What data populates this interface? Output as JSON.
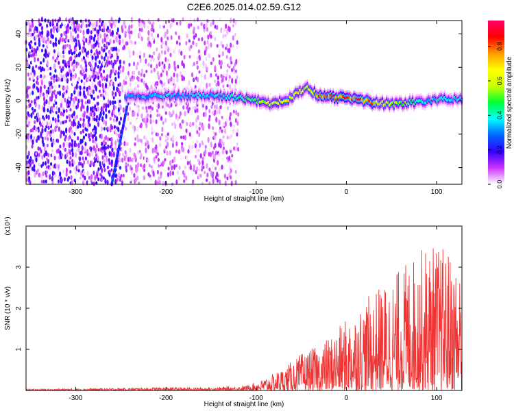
{
  "title": "C2E6.2025.014.02.59.G12",
  "chart_data": [
    {
      "type": "heatmap",
      "xlabel": "Height of straight line (km)",
      "ylabel": "Frequency (Hz)",
      "xlim": [
        -355,
        128
      ],
      "ylim": [
        -50,
        48
      ],
      "x_ticks": [
        -300,
        -200,
        -100,
        0,
        100
      ],
      "y_ticks": [
        -40,
        -20,
        0,
        20,
        40
      ],
      "colorbar": {
        "label": "Normalized spectral amplitude",
        "range": [
          0,
          0.95
        ],
        "ticks": [
          0.0,
          0.2,
          0.4,
          0.6,
          0.8
        ],
        "tick_labels": [
          "0.0",
          "0.2",
          "0.4",
          "0.6",
          "0.8"
        ],
        "colormap": [
          "#ffffff",
          "#cc33ff",
          "#3300ff",
          "#0066ff",
          "#00ffff",
          "#00ff33",
          "#ccff00",
          "#ffff00",
          "#ff9900",
          "#ff0000",
          "#ff0066"
        ]
      },
      "noise_region_x": [
        -355,
        -120
      ],
      "streak": {
        "x_start": -240,
        "x_end": -260,
        "y_start": 5,
        "y_end": -50,
        "amplitude": 0.25
      },
      "ridge": {
        "x": [
          -245,
          -200,
          -150,
          -120,
          -100,
          -80,
          -60,
          -45,
          -30,
          -10,
          10,
          30,
          50,
          70,
          90,
          110,
          128
        ],
        "y": [
          2,
          3,
          3,
          2,
          0,
          -2,
          2,
          8,
          3,
          2,
          1,
          -1,
          -2,
          -1,
          0,
          1,
          1
        ],
        "amplitude": [
          0.3,
          0.35,
          0.35,
          0.4,
          0.5,
          0.6,
          0.65,
          0.55,
          0.8,
          0.85,
          0.85,
          0.75,
          0.6,
          0.45,
          0.35,
          0.4,
          0.35
        ]
      },
      "grid": false
    },
    {
      "type": "line",
      "xlabel": "Height of straight line (km)",
      "ylabel": "SNR (10 * v/v)",
      "scale_label": "(x10⁴)",
      "xlim": [
        -355,
        128
      ],
      "ylim": [
        0,
        4.0
      ],
      "x_ticks": [
        -300,
        -200,
        -100,
        0,
        100
      ],
      "y_ticks": [
        1,
        2,
        3
      ],
      "color": "#ee3333",
      "envelope": {
        "x": [
          -355,
          -250,
          -200,
          -150,
          -110,
          -90,
          -70,
          -50,
          -30,
          -10,
          10,
          30,
          50,
          70,
          90,
          110,
          128
        ],
        "y": [
          0.03,
          0.06,
          0.08,
          0.07,
          0.12,
          0.3,
          0.55,
          0.9,
          1.1,
          1.5,
          2.0,
          2.4,
          2.8,
          3.2,
          3.6,
          3.5,
          3.0
        ]
      },
      "grid": false
    }
  ]
}
